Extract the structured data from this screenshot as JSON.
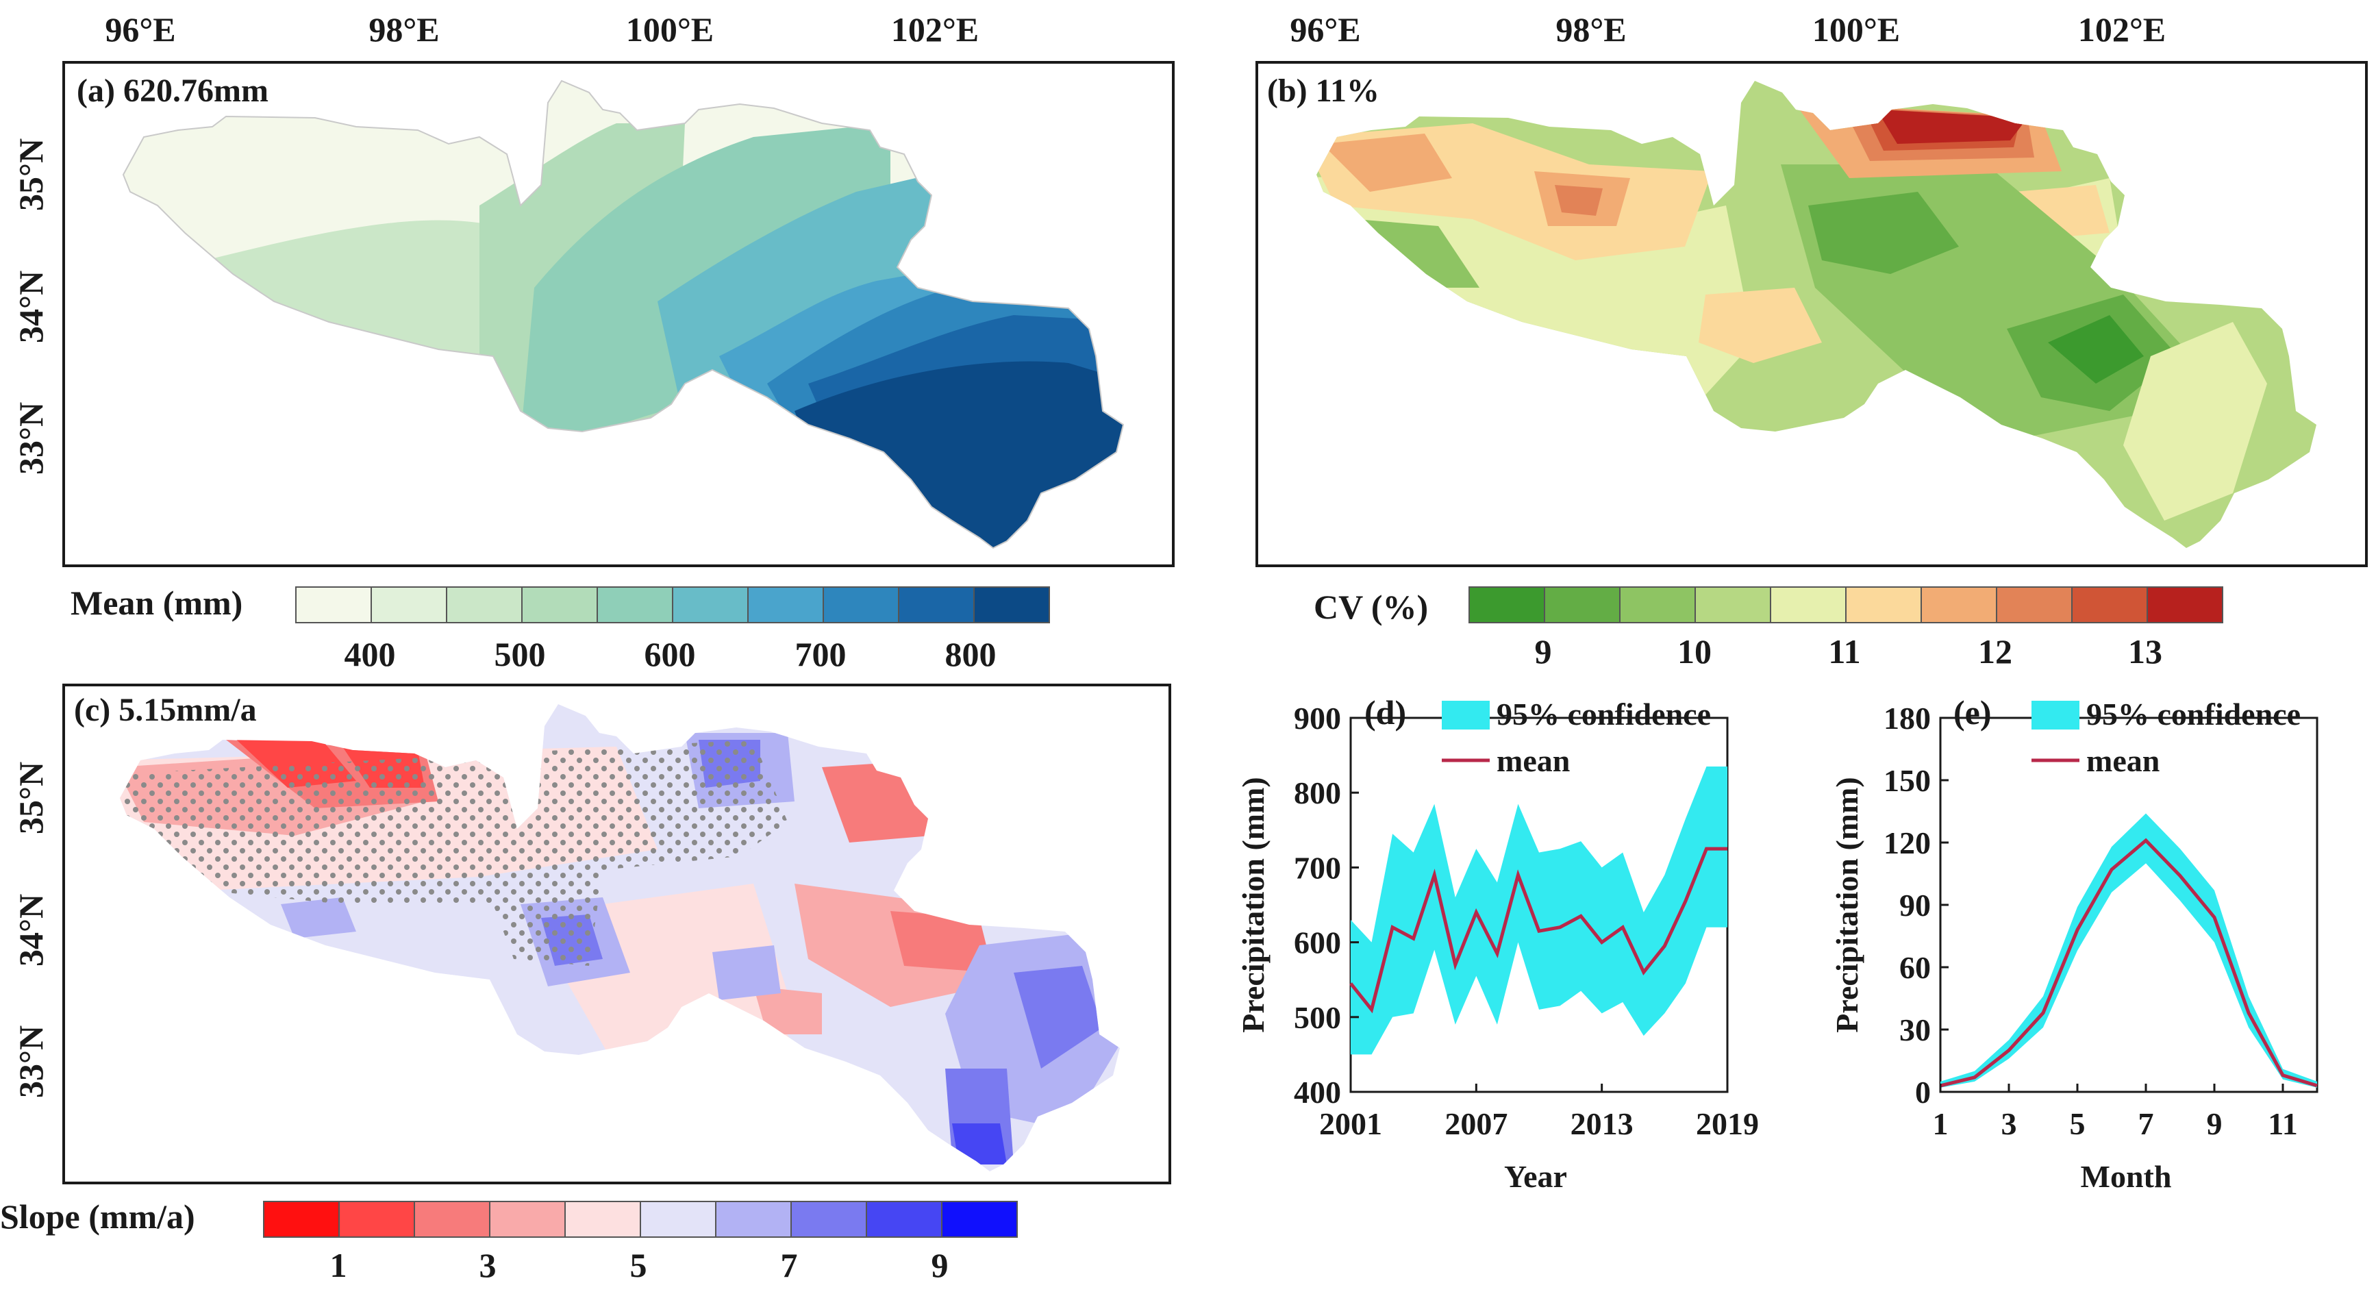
{
  "panel_a": {
    "label": "(a) 620.76mm",
    "lon_ticks": [
      "96°E",
      "98°E",
      "100°E",
      "102°E"
    ],
    "lat_ticks": [
      "35°N",
      "34°N",
      "33°N"
    ],
    "colorbar_label": "Mean (mm)",
    "colorbar_ticks": [
      "400",
      "500",
      "600",
      "700",
      "800"
    ],
    "colors": [
      "#f4f8ea",
      "#e1f1da",
      "#cbe7c8",
      "#b2dcb9",
      "#8fcfb8",
      "#68bcc8",
      "#4aa4cc",
      "#2e86bd",
      "#1a66a7",
      "#0c4a86"
    ]
  },
  "panel_b": {
    "label": "(b) 11%",
    "lon_ticks": [
      "96°E",
      "98°E",
      "100°E",
      "102°E"
    ],
    "colorbar_label": "CV (%)",
    "colorbar_ticks": [
      "9",
      "10",
      "11",
      "12",
      "13"
    ],
    "colors": [
      "#3c9a2e",
      "#63ad45",
      "#8ec463",
      "#b6d883",
      "#e6f0ae",
      "#fbd99b",
      "#f2ac74",
      "#e28357",
      "#d05536",
      "#b7211e"
    ]
  },
  "panel_c": {
    "label": "(c) 5.15mm/a",
    "lat_ticks": [
      "35°N",
      "34°N",
      "33°N"
    ],
    "colorbar_label": "Slope (mm/a)",
    "colorbar_ticks": [
      "1",
      "3",
      "5",
      "7",
      "9"
    ],
    "colors": [
      "#ff1010",
      "#ff4646",
      "#f77b7b",
      "#f9aaaa",
      "#fde0e0",
      "#e3e3f8",
      "#b2b2f4",
      "#7a7af0",
      "#4646f3",
      "#1010fd"
    ]
  },
  "chart_data": [
    {
      "type": "line",
      "panel": "(d)",
      "title": "",
      "xlabel": "Year",
      "ylabel": "Precipitation (mm)",
      "xlim": [
        2001,
        2019
      ],
      "ylim": [
        400,
        900
      ],
      "xticks": [
        "2001",
        "2007",
        "2013",
        "2019"
      ],
      "yticks": [
        "400",
        "500",
        "600",
        "700",
        "800",
        "900"
      ],
      "legend": [
        "95% confidence",
        "mean"
      ],
      "x": [
        2001,
        2002,
        2003,
        2004,
        2005,
        2006,
        2007,
        2008,
        2009,
        2010,
        2011,
        2012,
        2013,
        2014,
        2015,
        2016,
        2017,
        2018,
        2019
      ],
      "series": [
        {
          "name": "mean",
          "values": [
            545,
            510,
            620,
            605,
            690,
            570,
            640,
            585,
            690,
            615,
            620,
            635,
            600,
            620,
            560,
            595,
            655,
            725,
            725
          ]
        },
        {
          "name": "95% confidence upper",
          "values": [
            630,
            600,
            745,
            720,
            785,
            660,
            725,
            680,
            785,
            720,
            725,
            735,
            700,
            720,
            640,
            690,
            765,
            835,
            835
          ]
        },
        {
          "name": "95% confidence lower",
          "values": [
            450,
            450,
            500,
            505,
            590,
            490,
            555,
            490,
            600,
            510,
            515,
            535,
            505,
            520,
            475,
            505,
            545,
            620,
            620
          ]
        }
      ],
      "colors": {
        "band": "#33eaf0",
        "mean": "#b8284a"
      }
    },
    {
      "type": "line",
      "panel": "(e)",
      "title": "",
      "xlabel": "Month",
      "ylabel": "Precipitation (mm)",
      "xlim": [
        1,
        12
      ],
      "ylim": [
        0,
        180
      ],
      "xticks": [
        "1",
        "3",
        "5",
        "7",
        "9",
        "11"
      ],
      "yticks": [
        "0",
        "30",
        "60",
        "90",
        "120",
        "150",
        "180"
      ],
      "legend": [
        "95% confidence",
        "mean"
      ],
      "x": [
        1,
        2,
        3,
        4,
        5,
        6,
        7,
        8,
        9,
        10,
        11,
        12
      ],
      "series": [
        {
          "name": "mean",
          "values": [
            3,
            7,
            20,
            38,
            78,
            107,
            121,
            104,
            84,
            38,
            8,
            3
          ]
        },
        {
          "name": "95% confidence upper",
          "values": [
            5,
            10,
            25,
            46,
            89,
            118,
            134,
            117,
            97,
            46,
            11,
            5
          ]
        },
        {
          "name": "95% confidence lower",
          "values": [
            2,
            5,
            16,
            31,
            68,
            96,
            110,
            92,
            72,
            31,
            6,
            2
          ]
        }
      ],
      "colors": {
        "band": "#33eaf0",
        "mean": "#b8284a"
      }
    }
  ]
}
